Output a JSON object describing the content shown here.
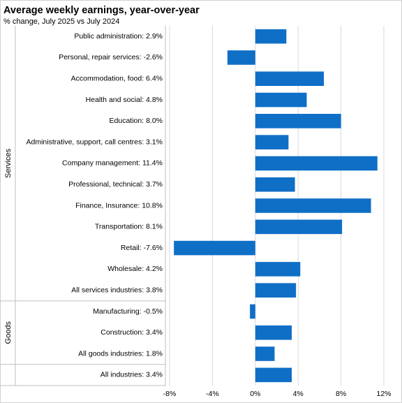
{
  "chart_data": {
    "type": "bar",
    "orientation": "horizontal",
    "title": "Average weekly earnings, year-over-year",
    "subtitle": "% change, July 2025 vs July 2024",
    "xlim": [
      -8,
      12
    ],
    "xticks": [
      "-8%",
      "-4%",
      "0%",
      "4%",
      "8%",
      "12%"
    ],
    "tick_values": [
      -8,
      -4,
      0,
      4,
      8,
      12
    ],
    "gridlines": "vertical",
    "bar_color": "#0F6FC6",
    "groups": [
      {
        "name": "Services",
        "start": 0,
        "end": 12
      },
      {
        "name": "Goods",
        "start": 13,
        "end": 15
      }
    ],
    "categories": [
      "Public administration:  2.9%",
      "Personal, repair services:  -2.6%",
      "Accommodation, food:  6.4%",
      "Health and social:  4.8%",
      "Education:  8.0%",
      "Administrative, support, call centres:  3.1%",
      "Company management:  11.4%",
      "Professional, technical:  3.7%",
      "Finance, Insurance:  10.8%",
      "Transportation:  8.1%",
      "Retail:  -7.6%",
      "Wholesale:  4.2%",
      "All services industries:  3.8%",
      "Manufacturing:  -0.5%",
      "Construction:  3.4%",
      "All goods industries:  1.8%",
      "All industries:  3.4%"
    ],
    "values": [
      2.9,
      -2.6,
      6.4,
      4.8,
      8.0,
      3.1,
      11.4,
      3.7,
      10.8,
      8.1,
      -7.6,
      4.2,
      3.8,
      -0.5,
      3.4,
      1.8,
      3.4
    ]
  }
}
